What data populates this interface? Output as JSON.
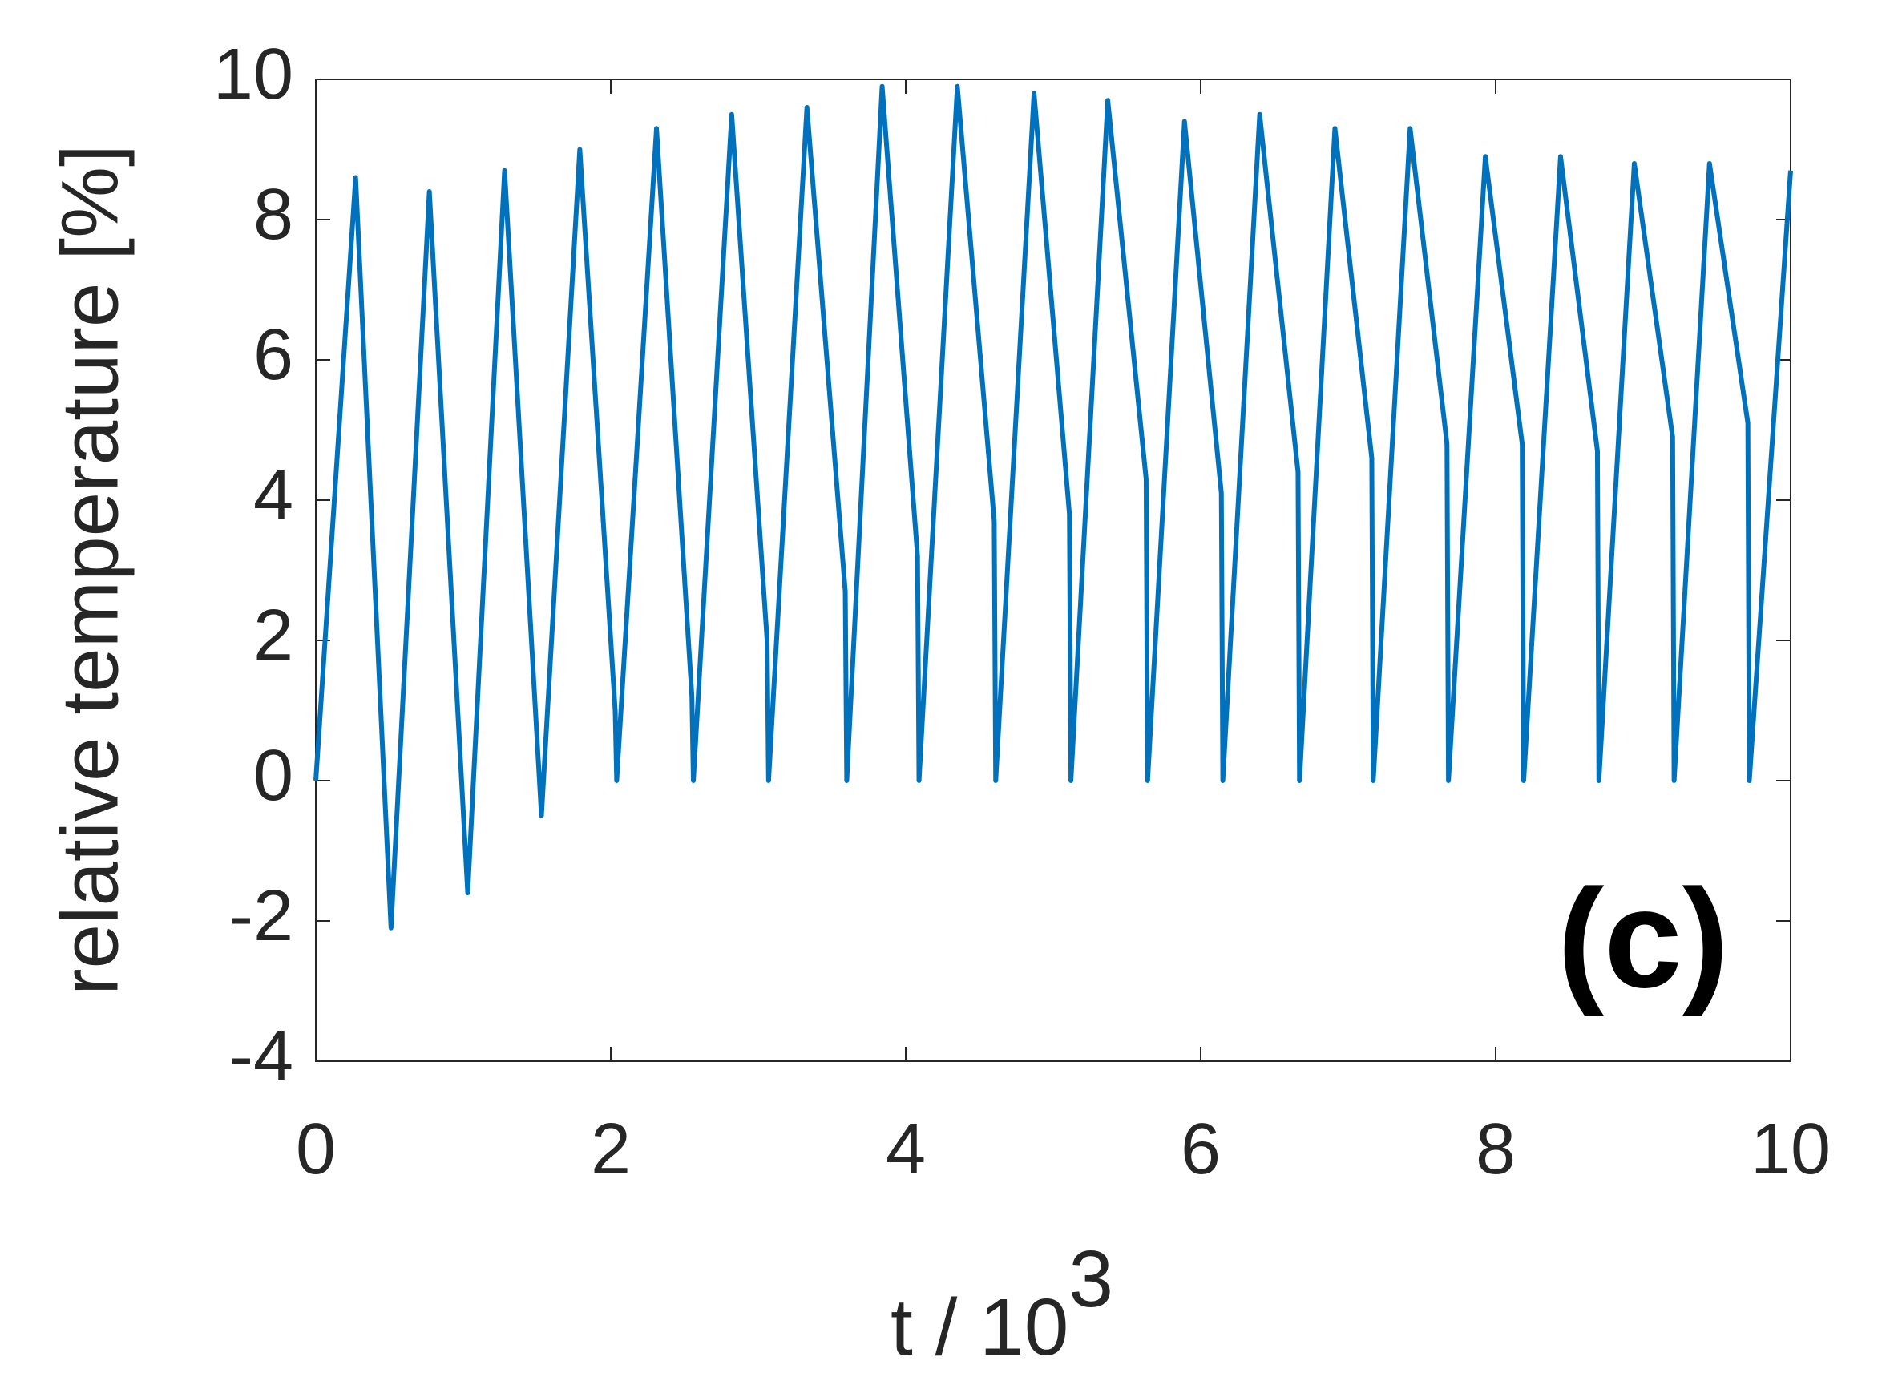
{
  "chart_data": {
    "type": "line",
    "xlabel": "t / 10",
    "xlabel_superscript": "3",
    "ylabel": "relative temperature [%]",
    "annotation": "(c)",
    "xlim": [
      0,
      10
    ],
    "xticks": [
      0,
      2,
      4,
      6,
      8,
      10
    ],
    "ylim": [
      -4,
      10
    ],
    "yticks": [
      -4,
      -2,
      0,
      2,
      4,
      6,
      8,
      10
    ],
    "grid": false,
    "series": [
      {
        "color": "#0072bd",
        "x": [
          0,
          0.27,
          0.51,
          0.77,
          1.03,
          1.28,
          1.53,
          1.79,
          2.03,
          2.04,
          2.31,
          2.55,
          2.56,
          2.82,
          3.06,
          3.07,
          3.33,
          3.59,
          3.6,
          3.84,
          4.08,
          4.09,
          4.35,
          4.6,
          4.61,
          4.87,
          5.11,
          5.12,
          5.37,
          5.63,
          5.64,
          5.89,
          6.14,
          6.15,
          6.4,
          6.66,
          6.67,
          6.91,
          7.16,
          7.17,
          7.42,
          7.67,
          7.68,
          7.93,
          8.18,
          8.19,
          8.44,
          8.69,
          8.7,
          8.94,
          9.2,
          9.21,
          9.45,
          9.71,
          9.72,
          10
        ],
        "values": [
          0,
          8.6,
          -2.1,
          8.4,
          -1.6,
          8.7,
          -0.5,
          9.0,
          1.0,
          0,
          9.3,
          1.2,
          0,
          9.5,
          2.0,
          0,
          9.6,
          2.7,
          0,
          9.9,
          3.2,
          0,
          9.9,
          3.7,
          0,
          9.8,
          3.8,
          0,
          9.7,
          4.3,
          0,
          9.4,
          4.1,
          0,
          9.5,
          4.4,
          0,
          9.3,
          4.6,
          0,
          9.3,
          4.8,
          0,
          8.9,
          4.8,
          0,
          8.9,
          4.7,
          0,
          8.8,
          4.9,
          0,
          8.8,
          5.1,
          0,
          8.7
        ]
      }
    ]
  }
}
